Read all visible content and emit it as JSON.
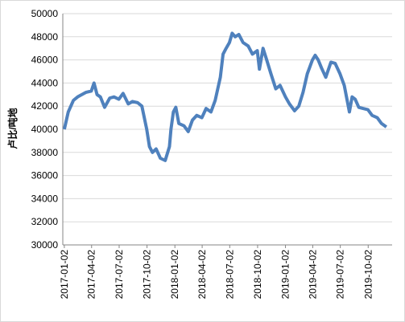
{
  "chart_data": {
    "type": "line",
    "y_label": "卢比/吨地",
    "x": [
      "2017-01-02",
      "2017-01-15",
      "2017-02-01",
      "2017-02-15",
      "2017-03-01",
      "2017-03-15",
      "2017-04-01",
      "2017-04-10",
      "2017-04-20",
      "2017-05-01",
      "2017-05-15",
      "2017-06-01",
      "2017-06-15",
      "2017-07-01",
      "2017-07-15",
      "2017-08-01",
      "2017-08-15",
      "2017-09-01",
      "2017-09-15",
      "2017-10-01",
      "2017-10-10",
      "2017-10-20",
      "2017-11-01",
      "2017-11-15",
      "2017-12-01",
      "2017-12-15",
      "2017-12-20",
      "2017-12-28",
      "2018-01-05",
      "2018-01-15",
      "2018-02-01",
      "2018-02-15",
      "2018-03-01",
      "2018-03-15",
      "2018-04-01",
      "2018-04-15",
      "2018-05-01",
      "2018-05-15",
      "2018-06-01",
      "2018-06-10",
      "2018-06-20",
      "2018-07-01",
      "2018-07-10",
      "2018-07-20",
      "2018-08-01",
      "2018-08-15",
      "2018-09-01",
      "2018-09-15",
      "2018-10-01",
      "2018-10-08",
      "2018-10-20",
      "2018-11-01",
      "2018-11-15",
      "2018-12-01",
      "2018-12-15",
      "2019-01-02",
      "2019-01-15",
      "2019-02-01",
      "2019-02-15",
      "2019-03-01",
      "2019-03-15",
      "2019-04-01",
      "2019-04-10",
      "2019-04-20",
      "2019-05-01",
      "2019-05-15",
      "2019-06-01",
      "2019-06-15",
      "2019-07-01",
      "2019-07-15",
      "2019-08-01",
      "2019-08-10",
      "2019-08-20",
      "2019-09-01",
      "2019-09-15",
      "2019-10-01",
      "2019-10-15",
      "2019-11-01",
      "2019-11-15",
      "2019-12-01"
    ],
    "series": [
      {
        "color": "#4f81bd",
        "values": [
          40000,
          41500,
          42500,
          42800,
          43000,
          43200,
          43300,
          44000,
          43000,
          42800,
          41900,
          42700,
          42800,
          42600,
          43100,
          42200,
          42400,
          42300,
          42000,
          40000,
          38500,
          38000,
          38300,
          37500,
          37300,
          38500,
          40000,
          41500,
          41900,
          40500,
          40300,
          39800,
          40800,
          41200,
          41000,
          41800,
          41500,
          42500,
          44500,
          46500,
          47000,
          47500,
          48300,
          48000,
          48200,
          47500,
          47200,
          46500,
          46800,
          45200,
          47000,
          46000,
          44800,
          43500,
          43800,
          42800,
          42200,
          41600,
          42000,
          43200,
          44800,
          46000,
          46400,
          46000,
          45300,
          44500,
          45800,
          45700,
          44800,
          43800,
          41500,
          42800,
          42600,
          41900,
          41800,
          41700,
          41200,
          41000,
          40500,
          40200
        ]
      }
    ],
    "xlim": [
      "2016-12-28",
      "2019-12-20"
    ],
    "xticks": [
      "2017-01-02",
      "2017-04-02",
      "2017-07-02",
      "2017-10-02",
      "2018-01-02",
      "2018-04-02",
      "2018-07-02",
      "2018-10-02",
      "2019-01-02",
      "2019-04-02",
      "2019-07-02",
      "2019-10-02"
    ],
    "ylim": [
      30000,
      50000
    ],
    "yticks": [
      30000,
      32000,
      34000,
      36000,
      38000,
      40000,
      42000,
      44000,
      46000,
      48000,
      50000
    ],
    "grid": true
  }
}
